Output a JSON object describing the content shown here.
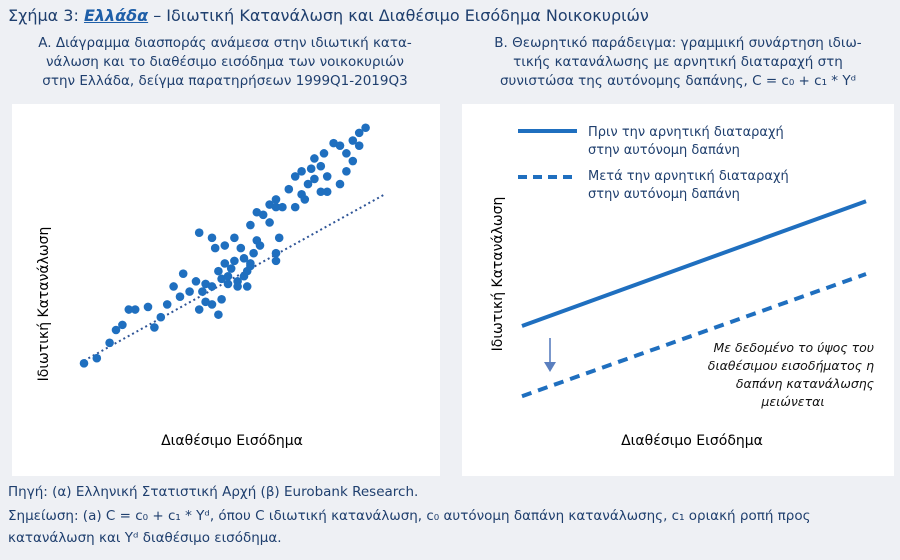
{
  "figure": {
    "title_prefix": "Σχήμα 3: ",
    "title_country": "Ελλάδα",
    "title_rest": " – Ιδιωτική Κατανάλωση και Διαθέσιμο Εισόδημα Νοικοκυριών"
  },
  "panel_a": {
    "subtitle_line1": "A. Διάγραμμα διασποράς ανάμεσα στην ιδιωτική κατα-",
    "subtitle_line2": "νάλωση και το διαθέσιμο εισόδημα των νοικοκυριών",
    "subtitle_line3": "στην Ελλάδα, δείγμα παρατηρήσεων 1999Q1-2019Q3"
  },
  "panel_b": {
    "subtitle_line1": "B. Θεωρητικό παράδειγμα: γραμμική συνάρτηση ιδιω-",
    "subtitle_line2": "τικής κατανάλωσης με αρνητική διαταραχή στη",
    "subtitle_line3": "συνιστώσα της αυτόνομης δαπάνης, C = c₀ + c₁ * Yᵈ",
    "annotation": [
      "Με δεδομένο το ύψος του",
      "διαθέσιμου εισοδήματος η",
      "δαπάνη κατανάλωσης",
      "μειώνεται"
    ]
  },
  "footer": {
    "source": "Πηγή: (α) Ελληνική Στατιστική Αρχή (β) Eurobank Research.",
    "note_line1": "Σημείωση: (a) C = c₀ + c₁ * Yᵈ, όπου C ιδιωτική κατανάλωση, c₀ αυτόνομη δαπάνη κατανάλωσης, c₁ οριακή ροπή προς",
    "note_line2": "κατανάλωση και Yᵈ διαθέσιμο εισόδημα."
  },
  "chart_data": [
    {
      "type": "scatter",
      "xlabel": "Διαθέσιμο Εισόδημα",
      "ylabel": "Ιδιωτική Κατανάλωση",
      "xlim": [
        0,
        100
      ],
      "ylim": [
        0,
        100
      ],
      "grid": false,
      "color": "#1f6fbf",
      "trendline": {
        "style": "dotted",
        "x": [
          0,
          94
        ],
        "y": [
          13,
          78
        ]
      },
      "points": [
        [
          0,
          12
        ],
        [
          4,
          14
        ],
        [
          8,
          20
        ],
        [
          10,
          25
        ],
        [
          12,
          27
        ],
        [
          16,
          33
        ],
        [
          14,
          33
        ],
        [
          20,
          34
        ],
        [
          22,
          26
        ],
        [
          24,
          30
        ],
        [
          26,
          35
        ],
        [
          28,
          42
        ],
        [
          30,
          38
        ],
        [
          31,
          47
        ],
        [
          33,
          40
        ],
        [
          36,
          33
        ],
        [
          35,
          44
        ],
        [
          37,
          40
        ],
        [
          38,
          43
        ],
        [
          40,
          42
        ],
        [
          42,
          48
        ],
        [
          43,
          45
        ],
        [
          44,
          51
        ],
        [
          45,
          46
        ],
        [
          45,
          43
        ],
        [
          46,
          49
        ],
        [
          47,
          52
        ],
        [
          48,
          44
        ],
        [
          49,
          57
        ],
        [
          50,
          53
        ],
        [
          50,
          46
        ],
        [
          51,
          48
        ],
        [
          52,
          50
        ],
        [
          53,
          55
        ],
        [
          54,
          60
        ],
        [
          55,
          58
        ],
        [
          44,
          58
        ],
        [
          41,
          57
        ],
        [
          40,
          61
        ],
        [
          36,
          63
        ],
        [
          47,
          61
        ],
        [
          52,
          66
        ],
        [
          56,
          70
        ],
        [
          54,
          71
        ],
        [
          58,
          67
        ],
        [
          58,
          74
        ],
        [
          60,
          76
        ],
        [
          60,
          73
        ],
        [
          62,
          73
        ],
        [
          64,
          80
        ],
        [
          66,
          85
        ],
        [
          68,
          87
        ],
        [
          70,
          82
        ],
        [
          72,
          92
        ],
        [
          74,
          89
        ],
        [
          76,
          79
        ],
        [
          75,
          94
        ],
        [
          78,
          98
        ],
        [
          80,
          97
        ],
        [
          82,
          94
        ],
        [
          84,
          99
        ],
        [
          86,
          102
        ],
        [
          88,
          104
        ],
        [
          86,
          97
        ],
        [
          84,
          91
        ],
        [
          82,
          87
        ],
        [
          80,
          82
        ],
        [
          76,
          85
        ],
        [
          74,
          79
        ],
        [
          72,
          84
        ],
        [
          71,
          88
        ],
        [
          68,
          78
        ],
        [
          69,
          76
        ],
        [
          66,
          73
        ],
        [
          60,
          55
        ],
        [
          61,
          61
        ],
        [
          60,
          52
        ],
        [
          42,
          31
        ],
        [
          40,
          35
        ],
        [
          38,
          36
        ],
        [
          43,
          37
        ],
        [
          48,
          42
        ],
        [
          51,
          42
        ],
        [
          52,
          51
        ]
      ]
    },
    {
      "type": "line",
      "xlabel": "Διαθέσιμο Εισόδημα",
      "ylabel": "Ιδιωτική Κατανάλωση",
      "xlim": [
        0,
        100
      ],
      "ylim": [
        0,
        100
      ],
      "legend_position": "top-left",
      "series": [
        {
          "name": "Πριν την αρνητική διαταραχή στην αυτόνομη δαπάνη",
          "style": "solid",
          "color": "#1f6fbf",
          "x": [
            0,
            100
          ],
          "y": [
            30,
            78
          ]
        },
        {
          "name": "Μετά την αρνητική διαταραχή στην αυτόνομη δαπάνη",
          "style": "dashed",
          "color": "#1f6fbf",
          "x": [
            0,
            100
          ],
          "y": [
            3,
            50
          ]
        }
      ]
    }
  ]
}
